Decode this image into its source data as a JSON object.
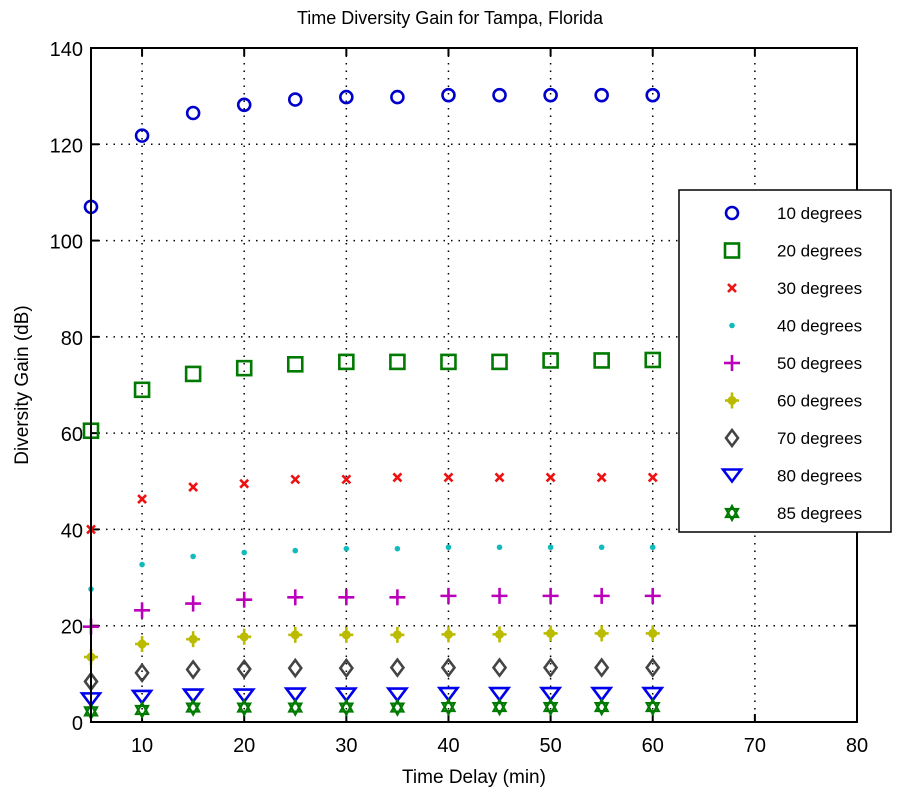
{
  "chart_data": {
    "type": "scatter",
    "title": "Time Diversity Gain for Tampa, Florida",
    "xlabel": "Time Delay (min)",
    "ylabel": "Diversity Gain (dB)",
    "xlim": [
      5,
      80
    ],
    "ylim": [
      0,
      140
    ],
    "xticks": [
      10,
      20,
      30,
      40,
      50,
      60,
      70,
      80
    ],
    "yticks": [
      0,
      20,
      40,
      60,
      80,
      100,
      120,
      140
    ],
    "grid": true,
    "legend_position": "right",
    "x": [
      5,
      10,
      15,
      20,
      25,
      30,
      35,
      40,
      45,
      50,
      55,
      60
    ],
    "series": [
      {
        "name": "10 degrees",
        "marker": "circle",
        "color": "#0000cc",
        "values": [
          107,
          121.8,
          126.5,
          128.2,
          129.3,
          129.8,
          129.8,
          130.2,
          130.2,
          130.2,
          130.2,
          130.2
        ]
      },
      {
        "name": "20 degrees",
        "marker": "square",
        "color": "#007a00",
        "values": [
          60.5,
          69,
          72.3,
          73.5,
          74.3,
          74.8,
          74.8,
          74.8,
          74.8,
          75.1,
          75.1,
          75.2
        ]
      },
      {
        "name": "30 degrees",
        "marker": "x",
        "color": "#ee1111",
        "values": [
          40,
          46.3,
          48.8,
          49.5,
          50.4,
          50.4,
          50.8,
          50.8,
          50.8,
          50.8,
          50.8,
          50.8
        ]
      },
      {
        "name": "40 degrees",
        "marker": "dot",
        "color": "#11bbbb",
        "values": [
          27.6,
          32.7,
          34.4,
          35.2,
          35.6,
          36,
          36,
          36.3,
          36.3,
          36.3,
          36.3,
          36.3
        ]
      },
      {
        "name": "50 degrees",
        "marker": "plus",
        "color": "#bb00bb",
        "values": [
          19.8,
          23.2,
          24.6,
          25.4,
          25.9,
          25.9,
          25.9,
          26.2,
          26.2,
          26.2,
          26.2,
          26.2
        ]
      },
      {
        "name": "60 degrees",
        "marker": "star",
        "color": "#bbbb00",
        "values": [
          13.5,
          16.2,
          17.2,
          17.7,
          18.1,
          18.1,
          18.1,
          18.2,
          18.2,
          18.4,
          18.4,
          18.4
        ]
      },
      {
        "name": "70 degrees",
        "marker": "diamond",
        "color": "#444444",
        "values": [
          8.4,
          10.2,
          10.9,
          11.0,
          11.2,
          11.2,
          11.3,
          11.3,
          11.3,
          11.3,
          11.3,
          11.3
        ]
      },
      {
        "name": "80 degrees",
        "marker": "triangle-down",
        "color": "#0000ee",
        "values": [
          4.7,
          5.2,
          5.5,
          5.5,
          5.7,
          5.7,
          5.7,
          5.8,
          5.8,
          5.8,
          5.8,
          5.8
        ]
      },
      {
        "name": "85 degrees",
        "marker": "hexagram",
        "color": "#007a00",
        "values": [
          2.2,
          2.5,
          3.0,
          3.0,
          3.0,
          3.0,
          3.0,
          3.1,
          3.1,
          3.1,
          3.1,
          3.1
        ]
      }
    ]
  }
}
